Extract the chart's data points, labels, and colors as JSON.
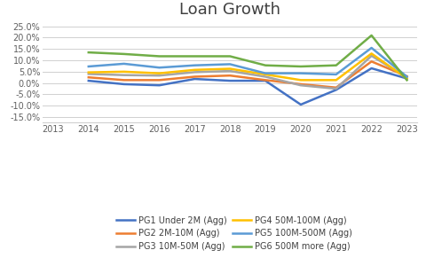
{
  "title": "Loan Growth",
  "years": [
    2013,
    2014,
    2015,
    2016,
    2017,
    2018,
    2019,
    2020,
    2021,
    2022,
    2023
  ],
  "series": [
    {
      "label": "PG1 Under 2M (Agg)",
      "color": "#4472C4",
      "values": [
        null,
        0.01,
        -0.005,
        -0.01,
        0.018,
        0.01,
        0.01,
        -0.095,
        -0.03,
        0.065,
        0.02
      ]
    },
    {
      "label": "PG2 2M-10M (Agg)",
      "color": "#ED7D31",
      "values": [
        null,
        0.025,
        0.013,
        0.013,
        0.028,
        0.033,
        0.013,
        -0.005,
        -0.02,
        0.095,
        0.03
      ]
    },
    {
      "label": "PG3 10M-50M (Agg)",
      "color": "#A5A5A5",
      "values": [
        null,
        0.04,
        0.035,
        0.033,
        0.048,
        0.053,
        0.028,
        -0.01,
        -0.025,
        0.12,
        0.025
      ]
    },
    {
      "label": "PG4 50M-100M (Agg)",
      "color": "#FFC000",
      "values": [
        null,
        0.047,
        0.05,
        0.043,
        0.058,
        0.063,
        0.038,
        0.013,
        0.013,
        0.13,
        0.02
      ]
    },
    {
      "label": "PG5 100M-500M (Agg)",
      "color": "#5B9BD5",
      "values": [
        null,
        0.073,
        0.085,
        0.068,
        0.078,
        0.083,
        0.043,
        0.043,
        0.038,
        0.155,
        0.028
      ]
    },
    {
      "label": "PG6 500M more (Agg)",
      "color": "#70AD47",
      "values": [
        null,
        0.135,
        0.128,
        0.118,
        0.118,
        0.118,
        0.078,
        0.073,
        0.078,
        0.21,
        0.013
      ]
    }
  ],
  "ylim": [
    -0.175,
    0.275
  ],
  "yticks": [
    -0.15,
    -0.1,
    -0.05,
    0.0,
    0.05,
    0.1,
    0.15,
    0.2,
    0.25
  ],
  "xlim": [
    2012.7,
    2023.3
  ],
  "xticks": [
    2013,
    2014,
    2015,
    2016,
    2017,
    2018,
    2019,
    2020,
    2021,
    2022,
    2023
  ],
  "background_color": "#FFFFFF",
  "grid_color": "#D0D0D0",
  "title_fontsize": 13,
  "tick_fontsize": 7,
  "legend_fontsize": 7,
  "line_width": 1.8
}
